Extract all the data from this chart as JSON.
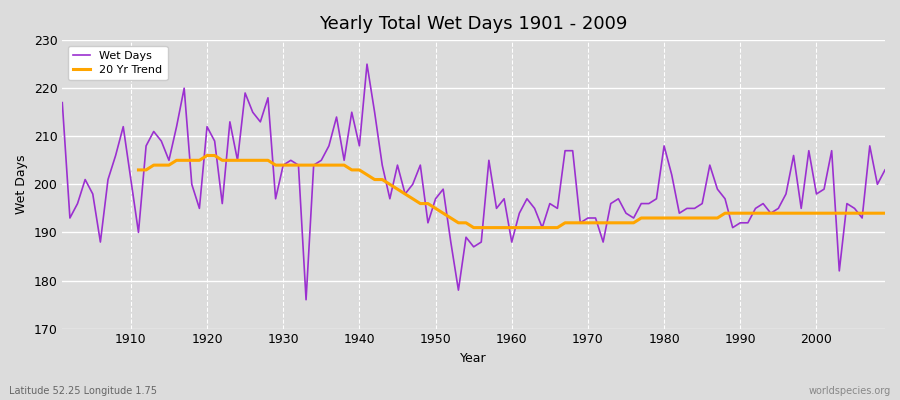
{
  "title": "Yearly Total Wet Days 1901 - 2009",
  "xlabel": "Year",
  "ylabel": "Wet Days",
  "subtitle": "Latitude 52.25 Longitude 1.75",
  "watermark": "worldspecies.org",
  "legend_wet_days": "Wet Days",
  "legend_trend": "20 Yr Trend",
  "wet_days_color": "#9B30D0",
  "trend_color": "#FFA500",
  "background_color": "#DCDCDC",
  "plot_bg_color": "#DCDCDC",
  "ylim": [
    170,
    230
  ],
  "xlim": [
    1901,
    2009
  ],
  "yticks": [
    170,
    180,
    190,
    200,
    210,
    220,
    230
  ],
  "xticks": [
    1910,
    1920,
    1930,
    1940,
    1950,
    1960,
    1970,
    1980,
    1990,
    2000
  ],
  "years": [
    1901,
    1902,
    1903,
    1904,
    1905,
    1906,
    1907,
    1908,
    1909,
    1910,
    1911,
    1912,
    1913,
    1914,
    1915,
    1916,
    1917,
    1918,
    1919,
    1920,
    1921,
    1922,
    1923,
    1924,
    1925,
    1926,
    1927,
    1928,
    1929,
    1930,
    1931,
    1932,
    1933,
    1934,
    1935,
    1936,
    1937,
    1938,
    1939,
    1940,
    1941,
    1942,
    1943,
    1944,
    1945,
    1946,
    1947,
    1948,
    1949,
    1950,
    1951,
    1952,
    1953,
    1954,
    1955,
    1956,
    1957,
    1958,
    1959,
    1960,
    1961,
    1962,
    1963,
    1964,
    1965,
    1966,
    1967,
    1968,
    1969,
    1970,
    1971,
    1972,
    1973,
    1974,
    1975,
    1976,
    1977,
    1978,
    1979,
    1980,
    1981,
    1982,
    1983,
    1984,
    1985,
    1986,
    1987,
    1988,
    1989,
    1990,
    1991,
    1992,
    1993,
    1994,
    1995,
    1996,
    1997,
    1998,
    1999,
    2000,
    2001,
    2002,
    2003,
    2004,
    2005,
    2006,
    2007,
    2008,
    2009
  ],
  "wet_days": [
    217,
    193,
    196,
    201,
    198,
    188,
    201,
    206,
    212,
    201,
    190,
    208,
    211,
    209,
    205,
    212,
    220,
    200,
    195,
    212,
    209,
    196,
    213,
    205,
    219,
    215,
    213,
    218,
    197,
    204,
    205,
    204,
    176,
    204,
    205,
    208,
    214,
    205,
    215,
    208,
    225,
    215,
    204,
    197,
    204,
    198,
    200,
    204,
    192,
    197,
    199,
    188,
    178,
    189,
    187,
    188,
    205,
    195,
    197,
    188,
    194,
    197,
    195,
    191,
    196,
    195,
    207,
    207,
    192,
    193,
    193,
    188,
    196,
    197,
    194,
    193,
    196,
    196,
    197,
    208,
    202,
    194,
    195,
    195,
    196,
    204,
    199,
    197,
    191,
    192,
    192,
    195,
    196,
    194,
    195,
    198,
    206,
    195,
    207,
    198,
    199,
    207,
    182,
    196,
    195,
    193,
    208,
    200,
    203
  ],
  "trend": [
    null,
    null,
    null,
    null,
    null,
    null,
    null,
    null,
    null,
    null,
    203,
    203,
    204,
    204,
    204,
    205,
    205,
    205,
    205,
    206,
    206,
    205,
    205,
    205,
    205,
    205,
    205,
    205,
    204,
    204,
    204,
    204,
    204,
    204,
    204,
    204,
    204,
    204,
    203,
    203,
    202,
    201,
    201,
    200,
    199,
    198,
    197,
    196,
    196,
    195,
    194,
    193,
    192,
    192,
    191,
    191,
    191,
    191,
    191,
    191,
    191,
    191,
    191,
    191,
    191,
    191,
    192,
    192,
    192,
    192,
    192,
    192,
    192,
    192,
    192,
    192,
    193,
    193,
    193,
    193,
    193,
    193,
    193,
    193,
    193,
    193,
    193,
    194,
    194,
    194,
    194,
    194,
    194,
    194,
    194,
    194,
    194,
    194,
    194,
    194,
    194,
    194,
    194,
    194,
    194,
    194,
    194,
    194,
    194
  ]
}
